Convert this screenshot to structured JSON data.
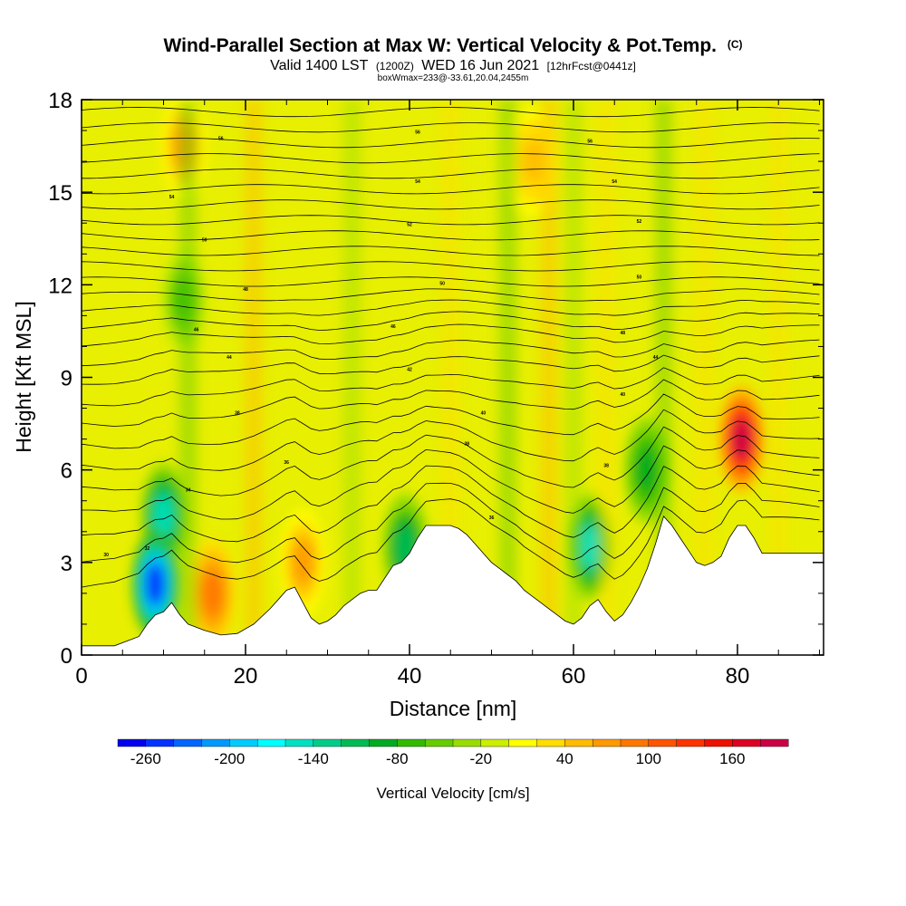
{
  "chart_data": {
    "type": "heatmap",
    "title": "Wind-Parallel Section at Max W: Vertical Velocity & Pot.Temp.",
    "title_mark": "(C)",
    "subtitle_prefix": "Valid 1400 LST",
    "subtitle_zulu": "(1200Z)",
    "subtitle_date": "WED 16 Jun 2021",
    "subtitle_forecast": "[12hrFcst@0441z]",
    "note": "boxWmax=233@-33.61,20.04,2455m",
    "xlabel": "Distance [nm]",
    "ylabel": "Height [Kft MSL]",
    "xlim": [
      0,
      90.5
    ],
    "ylim": [
      0,
      18
    ],
    "xticks": [
      0,
      20,
      40,
      60,
      80
    ],
    "yticks": [
      0,
      3,
      6,
      9,
      12,
      15,
      18
    ],
    "colorbar": {
      "title": "Vertical Velocity [cm/s]",
      "min": -280,
      "max": 200,
      "step": 20,
      "tick_values": [
        -260,
        -200,
        -140,
        -80,
        -20,
        40,
        100,
        160
      ],
      "colors": [
        "#0000ee",
        "#0033ff",
        "#0066ff",
        "#0099ff",
        "#00ccff",
        "#00ffff",
        "#00e0c0",
        "#00cc88",
        "#00bb55",
        "#00aa22",
        "#33bb00",
        "#66cc00",
        "#99dd00",
        "#ccee00",
        "#ffff00",
        "#ffdd00",
        "#ffbb00",
        "#ff9900",
        "#ff7700",
        "#ff5500",
        "#ff3300",
        "#ee1100",
        "#dd0022",
        "#cc0044"
      ]
    },
    "terrain_profile": {
      "distance_nm": [
        0,
        4,
        7,
        8,
        9,
        10,
        11,
        12,
        13,
        15,
        17,
        19,
        21,
        23,
        24,
        25,
        26,
        27,
        28,
        29,
        30,
        31,
        32,
        33,
        34,
        35,
        36,
        37,
        38,
        39,
        40,
        41,
        42,
        43,
        44,
        45,
        46,
        47,
        48,
        49,
        50,
        51,
        52,
        53,
        54,
        55,
        56,
        57,
        58,
        59,
        60,
        61,
        62,
        63,
        64,
        65,
        66,
        67,
        68,
        69,
        70,
        71,
        72,
        73,
        74,
        75,
        76,
        77,
        78,
        79,
        80,
        81,
        82,
        83,
        84,
        85,
        86,
        87,
        88,
        89,
        90.5
      ],
      "height_kft": [
        0.3,
        0.3,
        0.6,
        1.0,
        1.3,
        1.4,
        1.7,
        1.3,
        1.0,
        0.8,
        0.65,
        0.7,
        1.0,
        1.5,
        1.8,
        2.1,
        2.2,
        1.7,
        1.2,
        1.0,
        1.1,
        1.3,
        1.6,
        1.8,
        2.0,
        2.1,
        2.1,
        2.5,
        2.9,
        3.0,
        3.3,
        3.8,
        4.2,
        4.2,
        4.2,
        4.2,
        4.1,
        3.9,
        3.6,
        3.3,
        3.0,
        2.8,
        2.6,
        2.4,
        2.1,
        1.9,
        1.7,
        1.5,
        1.3,
        1.1,
        1.0,
        1.2,
        1.6,
        1.8,
        1.4,
        1.1,
        1.3,
        1.7,
        2.2,
        2.8,
        3.6,
        4.5,
        4.2,
        3.8,
        3.4,
        3.0,
        2.9,
        3.0,
        3.2,
        3.8,
        4.2,
        4.2,
        3.8,
        3.3,
        3.3,
        3.3,
        3.3,
        3.3,
        3.3,
        3.3,
        3.3
      ]
    },
    "updraft_cores": [
      {
        "distance_nm": 80.5,
        "height_kft": 7.0,
        "w_cms": 180
      },
      {
        "distance_nm": 12.5,
        "height_kft": 16.5,
        "w_cms": 60
      },
      {
        "distance_nm": 16.0,
        "height_kft": 2.0,
        "w_cms": 80
      },
      {
        "distance_nm": 27.0,
        "height_kft": 3.0,
        "w_cms": 60
      },
      {
        "distance_nm": 55.0,
        "height_kft": 16.0,
        "w_cms": 50
      }
    ],
    "downdraft_cores": [
      {
        "distance_nm": 9.0,
        "height_kft": 2.3,
        "w_cms": -250
      },
      {
        "distance_nm": 10.0,
        "height_kft": 4.5,
        "w_cms": -150
      },
      {
        "distance_nm": 62.0,
        "height_kft": 3.5,
        "w_cms": -160
      },
      {
        "distance_nm": 39.5,
        "height_kft": 3.5,
        "w_cms": -110
      },
      {
        "distance_nm": 12.5,
        "height_kft": 11.5,
        "w_cms": -70
      },
      {
        "distance_nm": 69.0,
        "height_kft": 6.0,
        "w_cms": -90
      }
    ],
    "theta_contour_heights_kft": [
      2.0,
      2.7,
      3.5,
      4.3,
      5.1,
      5.9,
      6.7,
      7.5,
      8.2,
      8.9,
      9.5,
      10.1,
      10.6,
      11.1,
      11.6,
      12.1,
      12.6,
      13.1,
      13.6,
      14.1,
      14.6,
      15.1,
      15.6,
      16.1,
      16.6,
      17.1,
      17.6
    ],
    "theta_labels": [
      {
        "distance_nm": 3,
        "height_kft": 3.2,
        "text": "30"
      },
      {
        "distance_nm": 8,
        "height_kft": 3.4,
        "text": "32"
      },
      {
        "distance_nm": 13,
        "height_kft": 5.3,
        "text": "34"
      },
      {
        "distance_nm": 25,
        "height_kft": 6.2,
        "text": "36"
      },
      {
        "distance_nm": 19,
        "height_kft": 7.8,
        "text": "38"
      },
      {
        "distance_nm": 50,
        "height_kft": 4.4,
        "text": "36"
      },
      {
        "distance_nm": 47,
        "height_kft": 6.8,
        "text": "38"
      },
      {
        "distance_nm": 64,
        "height_kft": 6.1,
        "text": "38"
      },
      {
        "distance_nm": 49,
        "height_kft": 7.8,
        "text": "40"
      },
      {
        "distance_nm": 66,
        "height_kft": 8.4,
        "text": "40"
      },
      {
        "distance_nm": 40,
        "height_kft": 9.2,
        "text": "42"
      },
      {
        "distance_nm": 70,
        "height_kft": 9.6,
        "text": "44"
      },
      {
        "distance_nm": 18,
        "height_kft": 9.6,
        "text": "44"
      },
      {
        "distance_nm": 14,
        "height_kft": 10.5,
        "text": "46"
      },
      {
        "distance_nm": 38,
        "height_kft": 10.6,
        "text": "46"
      },
      {
        "distance_nm": 66,
        "height_kft": 10.4,
        "text": "48"
      },
      {
        "distance_nm": 20,
        "height_kft": 11.8,
        "text": "48"
      },
      {
        "distance_nm": 44,
        "height_kft": 12.0,
        "text": "50"
      },
      {
        "distance_nm": 68,
        "height_kft": 12.2,
        "text": "50"
      },
      {
        "distance_nm": 15,
        "height_kft": 13.4,
        "text": "50"
      },
      {
        "distance_nm": 40,
        "height_kft": 13.9,
        "text": "52"
      },
      {
        "distance_nm": 68,
        "height_kft": 14.0,
        "text": "52"
      },
      {
        "distance_nm": 11,
        "height_kft": 14.8,
        "text": "54"
      },
      {
        "distance_nm": 41,
        "height_kft": 15.3,
        "text": "54"
      },
      {
        "distance_nm": 65,
        "height_kft": 15.3,
        "text": "54"
      },
      {
        "distance_nm": 17,
        "height_kft": 16.7,
        "text": "56"
      },
      {
        "distance_nm": 41,
        "height_kft": 16.9,
        "text": "56"
      },
      {
        "distance_nm": 62,
        "height_kft": 16.6,
        "text": "56"
      }
    ]
  }
}
